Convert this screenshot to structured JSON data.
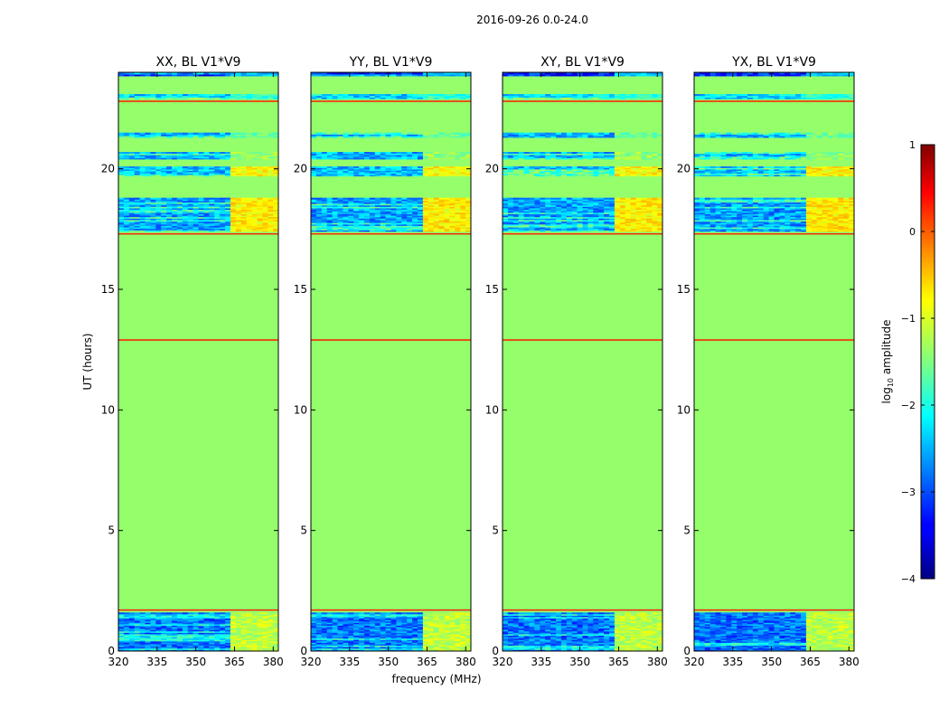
{
  "chart_data": {
    "type": "heatmap",
    "title": "2016-09-26 0.0-24.0",
    "xlabel": "frequency (MHz)",
    "ylabel": "UT (hours)",
    "xlim": [
      320,
      382
    ],
    "ylim": [
      0,
      24
    ],
    "xticks": [
      320,
      335,
      350,
      365,
      380
    ],
    "xtick_labels": [
      "320",
      "335",
      "350",
      "365",
      "380"
    ],
    "yticks": [
      0,
      5,
      10,
      15,
      20
    ],
    "ytick_labels": [
      "0",
      "5",
      "10",
      "15",
      "20"
    ],
    "colorbar": {
      "label_main": "log",
      "label_sub": "10",
      "label_rest": " amplitude",
      "range": [
        -4,
        1
      ],
      "ticks": [
        -4,
        -3,
        -2,
        -1,
        0,
        1
      ],
      "tick_labels": [
        "−4",
        "−3",
        "−2",
        "−1",
        "0",
        "1"
      ],
      "colormap": "jet"
    },
    "panels": [
      {
        "title": "XX, BL V1*V9",
        "rfi_band_start": 362.5,
        "dense_rows": [
          0.25,
          0.55,
          0.8,
          1.05,
          1.3,
          17.6,
          17.9,
          18.2,
          18.5,
          19.85,
          20.5,
          21.4,
          22.8
        ]
      },
      {
        "title": "YY, BL V1*V9",
        "rfi_band_start": 362.5,
        "dense_rows": [
          0.25,
          0.55,
          0.8,
          1.05,
          1.3,
          17.6,
          17.9,
          18.2,
          18.5,
          19.85,
          20.5,
          21.4,
          22.8
        ]
      },
      {
        "title": "XY, BL V1*V9",
        "rfi_band_start": 362.5,
        "dense_rows": [
          0.25,
          0.55,
          0.8,
          1.05,
          1.3,
          17.6,
          17.9,
          18.2,
          18.5,
          19.85,
          20.5,
          21.4,
          22.8
        ]
      },
      {
        "title": "YX, BL V1*V9",
        "rfi_band_start": 362.5,
        "dense_rows": [
          0.25,
          0.55,
          0.8,
          1.05,
          1.3,
          17.6,
          17.9,
          18.2,
          18.5,
          19.85,
          20.5,
          21.4,
          22.8
        ]
      }
    ],
    "background_value": -1.4,
    "flag_lines_hours": [
      1.7,
      12.9,
      17.3,
      22.8
    ],
    "flag_line_value": 0.25,
    "rfi_channels_mhz": [
      364,
      368,
      372,
      376,
      380
    ],
    "dense_blocks": [
      {
        "from": 0.0,
        "to": 1.6,
        "base": -2.8,
        "rfi": -0.3
      },
      {
        "from": 17.4,
        "to": 18.8,
        "base": -2.6,
        "rfi": 0.1
      },
      {
        "from": 19.7,
        "to": 20.1,
        "base": -2.4,
        "rfi": 0.05
      },
      {
        "from": 20.4,
        "to": 20.7,
        "base": -2.5,
        "rfi": -0.5
      },
      {
        "from": 21.3,
        "to": 21.5,
        "base": -2.5,
        "rfi": -0.7
      },
      {
        "from": 22.9,
        "to": 23.1,
        "base": -2.3,
        "rfi": -1.0
      },
      {
        "from": 23.85,
        "to": 24.0,
        "base": -3.2,
        "rfi": -1.5
      }
    ]
  }
}
